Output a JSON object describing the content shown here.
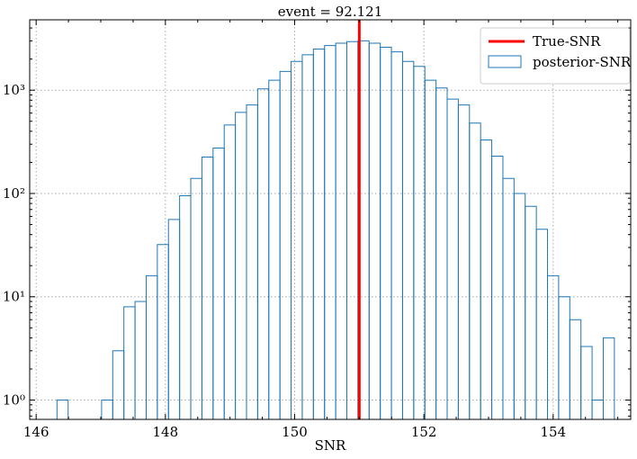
{
  "chart_data": {
    "type": "histogram",
    "title": "event = 92.121",
    "xlabel": "SNR",
    "ylabel": "",
    "yscale": "log",
    "xlim": [
      145.9,
      155.2
    ],
    "ylim": [
      0.65,
      4800
    ],
    "grid": true,
    "legend_position": "top-right",
    "x_ticks": [
      146,
      148,
      150,
      152,
      154
    ],
    "x_tick_labels": [
      "146",
      "148",
      "150",
      "152",
      "154"
    ],
    "y_ticks": [
      1,
      10,
      100,
      1000
    ],
    "y_tick_labels": [
      "10⁰",
      "10¹",
      "10²",
      "10³"
    ],
    "bin_edges_start": 146.15,
    "bin_width": 0.1725,
    "counts": [
      0,
      1,
      0,
      0,
      0,
      1,
      3,
      8,
      9,
      16,
      32,
      56,
      95,
      140,
      225,
      275,
      460,
      610,
      720,
      1030,
      1250,
      1520,
      1900,
      2200,
      2500,
      2700,
      2850,
      2950,
      3000,
      2850,
      2600,
      2350,
      1900,
      1700,
      1250,
      1050,
      820,
      720,
      480,
      330,
      230,
      140,
      100,
      75,
      45,
      16,
      10,
      6,
      3.3,
      1,
      4
    ],
    "series": [
      {
        "name": "posterior-SNR",
        "kind": "step-histogram",
        "color": "#1f77b4"
      },
      {
        "name": "True-SNR",
        "kind": "vertical-line",
        "x": 151.0,
        "color": "#ff0000"
      }
    ]
  }
}
